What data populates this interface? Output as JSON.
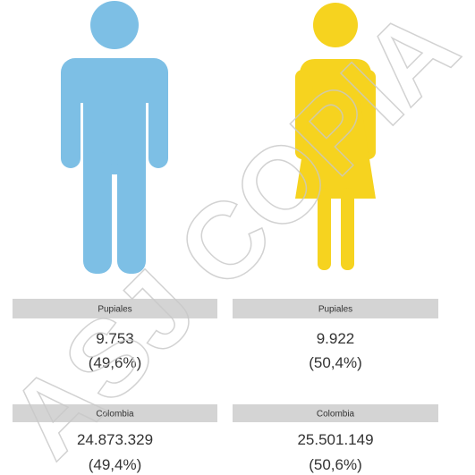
{
  "panels": [
    {
      "groups": [
        {
          "place": "Pupiales",
          "count": "9.753",
          "share": "(49,6%)"
        },
        {
          "place": "Colombia",
          "count": "24.873.329",
          "share": "(49,4%)"
        }
      ]
    },
    {
      "groups": [
        {
          "place": "Pupiales",
          "count": "9.922",
          "share": "(50,4%)"
        },
        {
          "place": "Colombia",
          "count": "25.501.149",
          "share": "(50,6%)"
        }
      ]
    }
  ],
  "watermark": "ASJ COPIA"
}
